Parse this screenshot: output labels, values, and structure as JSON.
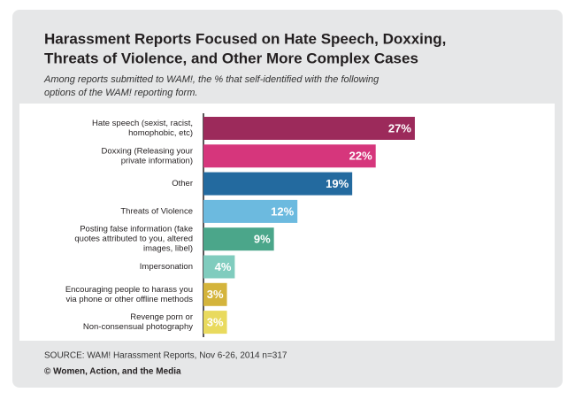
{
  "chart_data": {
    "type": "bar",
    "orientation": "horizontal",
    "title": [
      "Harassment Reports Focused on Hate Speech, Doxxing,",
      "Threats of Violence, and Other More Complex Cases"
    ],
    "subtitle": [
      "Among reports submitted to WAM!, the % that self-identified with the following",
      "options of the WAM! reporting form."
    ],
    "categories": [
      [
        "Hate speech (sexist, racist,",
        "homophobic, etc)"
      ],
      [
        "Doxxing (Releasing your",
        "private information)"
      ],
      [
        "Other"
      ],
      [
        "Threats of Violence"
      ],
      [
        "Posting false information (fake",
        "quotes attributed to you, altered",
        "images, libel)"
      ],
      [
        "Impersonation"
      ],
      [
        "Encouraging people to harass you",
        "via phone or other offline methods"
      ],
      [
        "Revenge porn or",
        "Non-consensual photography"
      ]
    ],
    "values": [
      27,
      22,
      19,
      12,
      9,
      4,
      3,
      3
    ],
    "value_labels": [
      "27%",
      "22%",
      "19%",
      "12%",
      "9%",
      "4%",
      "3%",
      "3%"
    ],
    "colors": [
      "#9c2a5b",
      "#d6367c",
      "#236a9f",
      "#6cbadf",
      "#4ba68a",
      "#80ccbe",
      "#d4b43c",
      "#e9da5e"
    ],
    "source": "SOURCE: WAM! Harassment Reports, Nov 6-26, 2014 n=317",
    "credit": "© Women, Action, and the Media"
  }
}
